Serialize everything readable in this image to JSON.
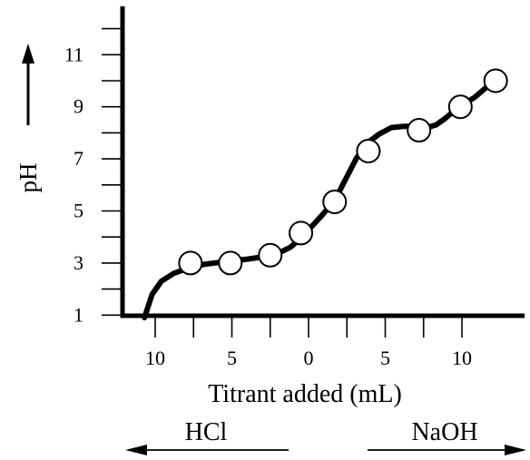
{
  "chart_data": {
    "type": "line",
    "xlabel": "Titrant added (mL)",
    "ylabel": "pH",
    "xlim": [
      -10.5,
      12.2
    ],
    "ylim": [
      0,
      12
    ],
    "x_ticks": [
      -10,
      -5,
      0,
      5,
      10
    ],
    "x_tick_labels": [
      "10",
      "5",
      "0",
      "5",
      "10"
    ],
    "x_minor_ticks": [
      -7.5,
      -2.5,
      2.5,
      7.5
    ],
    "y_ticks": [
      1,
      3,
      5,
      7,
      9,
      11
    ],
    "y_tick_labels": [
      "1",
      "3",
      "5",
      "7",
      "9",
      "11"
    ],
    "y_minor_ticks": [
      2,
      4,
      6,
      8,
      10,
      12
    ],
    "curve": {
      "x": [
        -10.7,
        -10.2,
        -9.6,
        -8.8,
        -7.9,
        -6.8,
        -5.5,
        -4.0,
        -2.8,
        -1.9,
        -1.2,
        -0.5,
        0.2,
        0.9,
        1.7,
        2.4,
        3.1,
        3.8,
        4.6,
        5.4,
        6.2,
        7.0,
        7.7,
        8.3,
        8.9,
        9.5,
        10.1,
        10.8,
        11.5,
        12.2
      ],
      "y": [
        0.9,
        1.8,
        2.3,
        2.6,
        2.8,
        2.95,
        3.05,
        3.15,
        3.25,
        3.4,
        3.6,
        3.95,
        4.4,
        4.85,
        5.4,
        6.2,
        7.0,
        7.6,
        7.95,
        8.2,
        8.25,
        8.25,
        8.2,
        8.3,
        8.55,
        8.85,
        9.1,
        9.35,
        9.7,
        10.0
      ]
    },
    "points": {
      "x": [
        -7.7,
        -5.1,
        -2.5,
        -0.5,
        1.7,
        3.9,
        7.2,
        9.9,
        12.2
      ],
      "y": [
        3.0,
        3.0,
        3.3,
        4.15,
        5.35,
        7.3,
        8.1,
        9.0,
        10.0
      ]
    },
    "ylabel_arrow": "up",
    "direction_labels": {
      "left": {
        "text": "HCl",
        "arrow": "left"
      },
      "right": {
        "text": "NaOH",
        "arrow": "right"
      }
    },
    "grid": false,
    "legend": "none"
  }
}
